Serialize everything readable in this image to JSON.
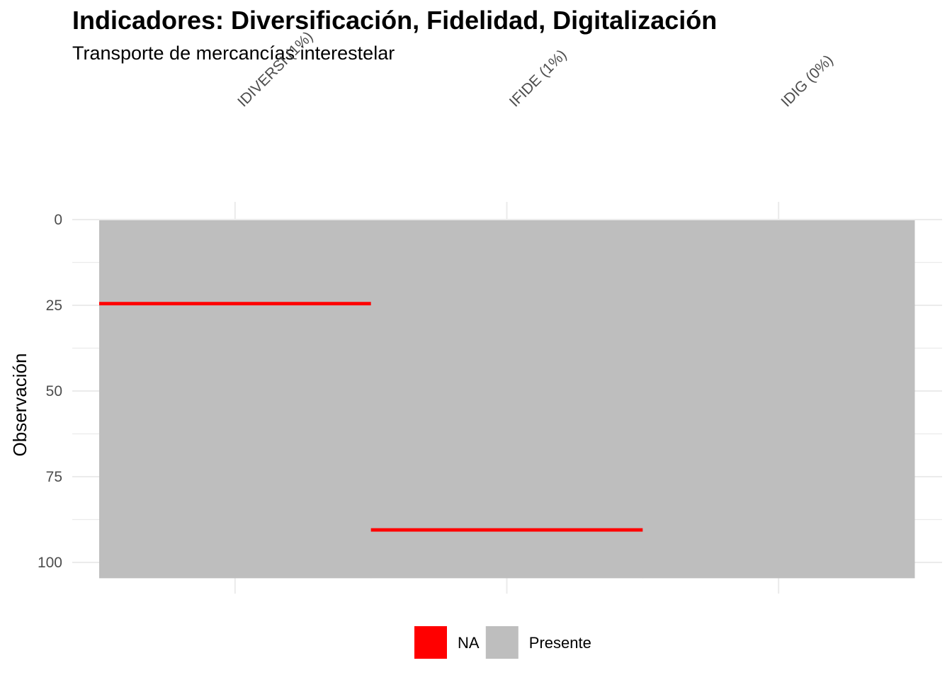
{
  "chart_data": {
    "type": "heatmap",
    "title": "Indicadores: Diversificación, Fidelidad, Digitalización",
    "subtitle": "Transporte de mercancías interestelar",
    "xlabel": "",
    "ylabel": "Observación",
    "categories": [
      "IDIVERSI (1%)",
      "IFIDE (1%)",
      "IDIG (0%)"
    ],
    "n_observations": 104,
    "ylim": [
      0,
      104
    ],
    "y_ticks": [
      0,
      25,
      50,
      75,
      100
    ],
    "y_reversed": true,
    "missing": [
      {
        "variable": "IDIVERSI (1%)",
        "observation": 24
      },
      {
        "variable": "IFIDE (1%)",
        "observation": 90
      }
    ],
    "legend": {
      "position": "bottom",
      "entries": [
        {
          "label": "NA",
          "color": "#ff0000"
        },
        {
          "label": "Presente",
          "color": "#bebebe"
        }
      ]
    },
    "grid": true
  },
  "colors": {
    "missing": "#ff0000",
    "present": "#bebebe",
    "grid": "#ebebeb"
  }
}
